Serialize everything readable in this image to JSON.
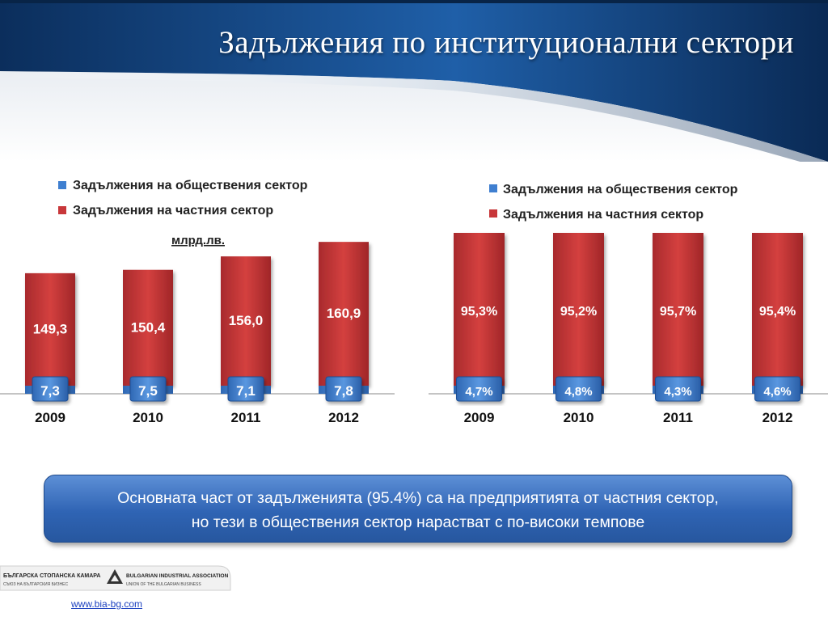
{
  "slide": {
    "title": "Задължения по институционални сектори",
    "callout": {
      "line1": "Основната част от задълженията (95.4%) са на предприятията от частния сектор,",
      "line2": "но тези в обществения сектор нарастват с по-високи темпове"
    },
    "footer": {
      "org_bg": "БЪЛГАРСКА СТОПАНСКА КАМАРА",
      "org_bg_sub": "СЪЮЗ НА БЪЛГАРСКИЯ БИЗНЕС",
      "org_en": "BULGARIAN INDUSTRIAL ASSOCIATION",
      "org_en_sub": "UNION OF THE BULGARIAN BUSINESS",
      "url": "www.bia-bg.com"
    }
  },
  "colors": {
    "public": "#3f7fd0",
    "private": "#c8373a",
    "header_dark": "#0b2e5c",
    "header_light": "#1f5fa8"
  },
  "chart_data": [
    {
      "type": "bar",
      "stacked": true,
      "unit_label": "млрд.лв.",
      "categories": [
        "2009",
        "2010",
        "2011",
        "2012"
      ],
      "series": [
        {
          "name": "Задължения на обществения сектор",
          "values": [
            7.3,
            7.5,
            7.1,
            7.8
          ],
          "labels": [
            "7,3",
            "7,5",
            "7,1",
            "7,8"
          ]
        },
        {
          "name": "Задължения на частния сектор",
          "values": [
            149.3,
            150.4,
            156.0,
            160.9
          ],
          "labels": [
            "149,3",
            "150,4",
            "156,0",
            "160,9"
          ]
        }
      ],
      "legend": "top-left"
    },
    {
      "type": "bar",
      "stacked": true,
      "categories": [
        "2009",
        "2010",
        "2011",
        "2012"
      ],
      "series": [
        {
          "name": "Задължения на обществения сектор",
          "values": [
            4.7,
            4.8,
            4.3,
            4.6
          ],
          "labels": [
            "4,7%",
            "4,8%",
            "4,3%",
            "4,6%"
          ]
        },
        {
          "name": "Задължения на частния сектор",
          "values": [
            95.3,
            95.2,
            95.7,
            95.4
          ],
          "labels": [
            "95,3%",
            "95,2%",
            "95,7%",
            "95,4%"
          ]
        }
      ],
      "legend": "top-right"
    }
  ]
}
